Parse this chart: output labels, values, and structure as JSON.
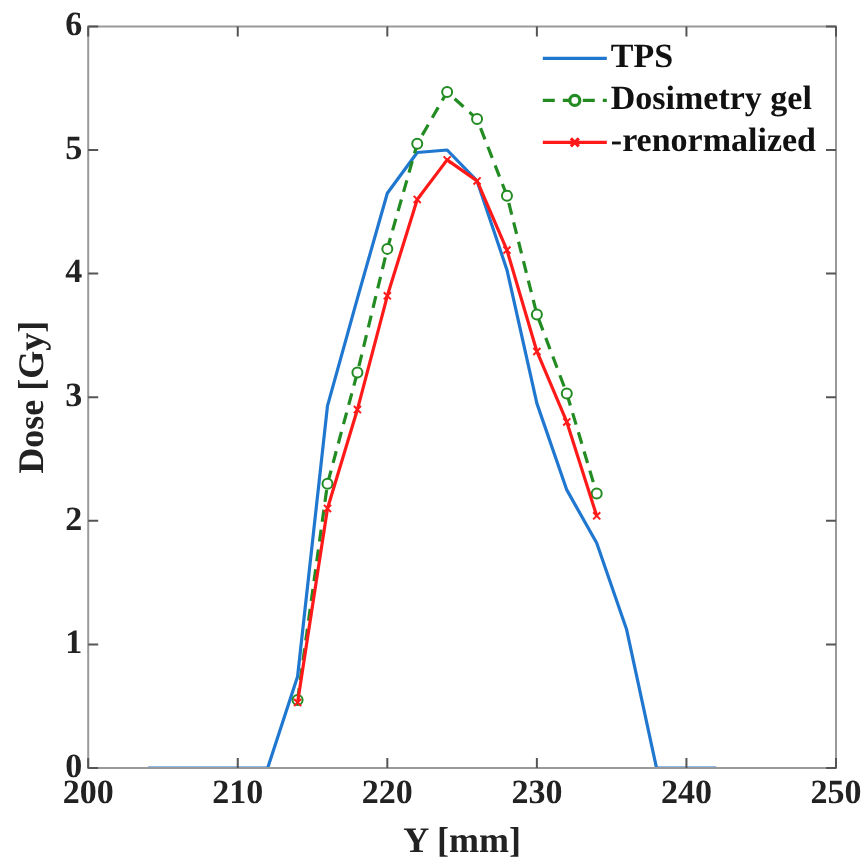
{
  "chart_data": {
    "type": "line",
    "xlabel": "Y [mm]",
    "ylabel": "Dose [Gy]",
    "xlim": [
      200,
      250
    ],
    "xticks": [
      200,
      210,
      220,
      230,
      240,
      250
    ],
    "ylim": [
      0,
      6
    ],
    "yticks": [
      0,
      1,
      2,
      3,
      4,
      5,
      6
    ],
    "grid": false,
    "legend": "top right",
    "series": [
      {
        "name": "TPS",
        "color": "#1f77d0",
        "marker": "none",
        "line_style": "solid",
        "x": [
          204,
          206,
          208,
          210,
          212,
          214,
          216,
          218,
          220,
          222,
          224,
          226,
          228,
          230,
          232,
          234,
          236,
          238,
          240,
          242
        ],
        "values": [
          0,
          0,
          0,
          0,
          0,
          0.74,
          2.93,
          3.8,
          4.65,
          4.98,
          5.0,
          4.75,
          4.03,
          2.95,
          2.25,
          1.82,
          1.12,
          0,
          0,
          0
        ]
      },
      {
        "name": "Dosimetry gel",
        "color": "#228b22",
        "marker": "circle",
        "line_style": "dashed",
        "x": [
          214,
          216,
          218,
          220,
          222,
          224,
          226,
          228,
          230,
          232,
          234
        ],
        "values": [
          0.55,
          2.3,
          3.2,
          4.2,
          5.05,
          5.47,
          5.25,
          4.63,
          3.67,
          3.03,
          2.22
        ]
      },
      {
        "name": "-renormalized",
        "color": "#ff1a1a",
        "marker": "cross",
        "line_style": "solid",
        "x": [
          214,
          216,
          218,
          220,
          222,
          224,
          226,
          228,
          230,
          232,
          234
        ],
        "values": [
          0.53,
          2.1,
          2.9,
          3.82,
          4.6,
          4.92,
          4.75,
          4.19,
          3.37,
          2.8,
          2.04
        ]
      }
    ]
  }
}
